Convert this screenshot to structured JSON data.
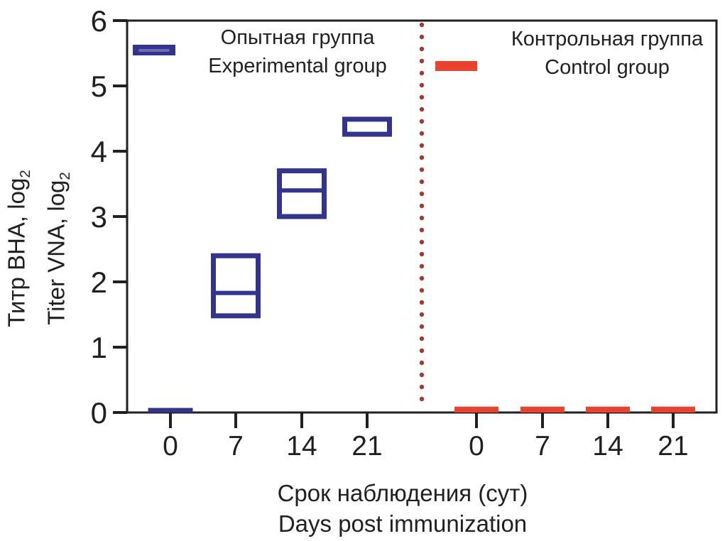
{
  "y_axis": {
    "label_ru_text": "Титр ВНА, log",
    "label_ru_sub": "2",
    "label_en_text": "Titer VNA, log",
    "label_en_sub": "2",
    "tick_labels": [
      "0",
      "1",
      "2",
      "3",
      "4",
      "5",
      "6"
    ]
  },
  "x_axis": {
    "title_ru": "Срок наблюдения (сут)",
    "title_en": "Days post immunization",
    "group1_tick_labels": [
      "0",
      "7",
      "14",
      "21"
    ],
    "group2_tick_labels": [
      "0",
      "7",
      "14",
      "21"
    ]
  },
  "legend": {
    "experimental": {
      "line1": "Опытная группа",
      "line2": "Experimental group"
    },
    "control": {
      "line1": "Контрольная группа",
      "line2": "Control group"
    }
  },
  "colors": {
    "experimental": "#32348e",
    "experimental_key_stripe": "#6b6db4",
    "control": "#e8432f",
    "separator_dots": "#a23a30",
    "axis": "#231f20"
  },
  "chart_data": {
    "type": "box",
    "title": "",
    "ylabel": "Титр ВНА, log2 / Titer VNA, log2",
    "xlabel": "Срок наблюдения (сут) / Days post immunization",
    "ylim": [
      0,
      6
    ],
    "yticks": [
      0,
      1,
      2,
      3,
      4,
      5,
      6
    ],
    "grid": false,
    "legend_position": "top",
    "separator": {
      "style": "dotted-vertical-line",
      "color": "#a23a30",
      "position": "between experimental and control groups"
    },
    "groups": [
      {
        "name": "Опытная группа / Experimental group",
        "color": "#32348e",
        "render": "box",
        "categories": [
          0,
          7,
          14,
          21
        ],
        "boxes": [
          {
            "day": 0,
            "low": 0,
            "high": 0.07,
            "median": null,
            "filled": true
          },
          {
            "day": 7,
            "low": 1.48,
            "high": 2.4,
            "median": 1.83,
            "filled": false
          },
          {
            "day": 14,
            "low": 3.0,
            "high": 3.7,
            "median": 3.4,
            "filled": false
          },
          {
            "day": 21,
            "low": 4.26,
            "high": 4.49,
            "median": null,
            "filled": false
          }
        ]
      },
      {
        "name": "Контрольная группа / Control group",
        "color": "#e8432f",
        "render": "bar",
        "categories": [
          0,
          7,
          14,
          21
        ],
        "values": [
          0.09,
          0.09,
          0.09,
          0.09
        ]
      }
    ]
  }
}
